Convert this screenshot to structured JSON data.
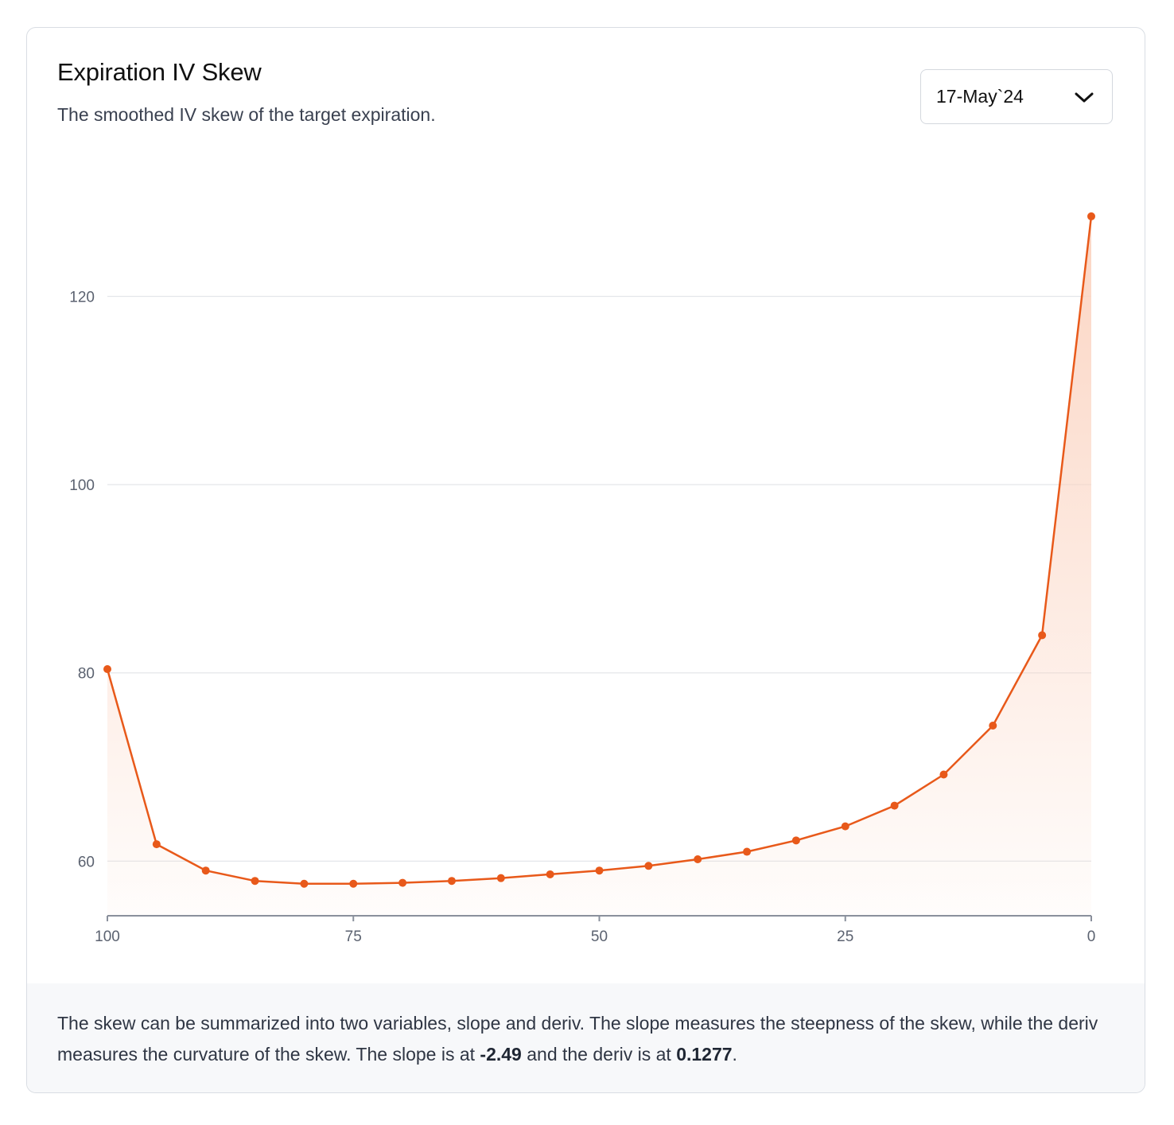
{
  "card": {
    "title": "Expiration IV Skew",
    "subtitle": "The smoothed IV skew of the target expiration."
  },
  "expiration_select": {
    "selected": "17-May`24",
    "icon": "chevron-down-icon"
  },
  "footer": {
    "text_before_slope": "The skew can be summarized into two variables, slope and deriv. The slope measures the steepness of the skew, while the deriv measures the curvature of the skew. The slope is at ",
    "slope_value": "-2.49",
    "text_between": " and the deriv is at ",
    "deriv_value": "0.1277",
    "text_after": "."
  },
  "colors": {
    "accent": "#e8591a",
    "fill_top": "#fbd3c0",
    "grid": "#e4e6ea",
    "axis": "#8a909c"
  },
  "chart_data": {
    "type": "area",
    "x_reversed": true,
    "xlim": [
      100,
      0
    ],
    "ylim": [
      54.2,
      135
    ],
    "x_ticks": [
      "100",
      "75",
      "50",
      "25",
      "0"
    ],
    "y_ticks": [
      "60",
      "80",
      "100",
      "120"
    ],
    "grid": "horizontal",
    "series": [
      {
        "x": [
          100,
          95,
          90,
          85,
          80,
          75,
          70,
          65,
          60,
          55,
          50,
          45,
          40,
          35,
          30,
          25,
          20,
          15,
          10,
          5,
          0
        ],
        "y": [
          80.4,
          61.8,
          59.0,
          57.9,
          57.6,
          57.6,
          57.7,
          57.9,
          58.2,
          58.6,
          59.0,
          59.5,
          60.2,
          61.0,
          62.2,
          63.7,
          65.9,
          69.2,
          74.4,
          84.0,
          128.5
        ]
      }
    ]
  }
}
